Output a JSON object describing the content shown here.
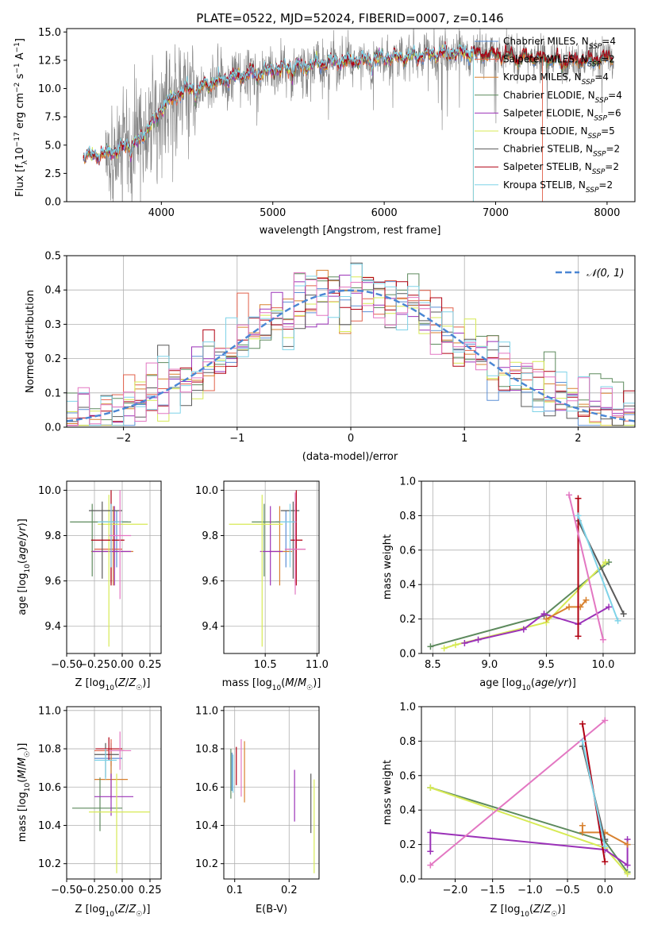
{
  "colors": {
    "data": "#808080",
    "chabrier_miles": "#5b8fd6",
    "salpeter_miles": "#e1604a",
    "kroupa_miles": "#d8812f",
    "chabrier_elodie": "#5d8a5d",
    "salpeter_elodie": "#9b32b8",
    "kroupa_elodie": "#d7ea55",
    "chabrier_stelib": "#5a5a5a",
    "salpeter_stelib": "#b00012",
    "kroupa_stelib": "#7fd3e8",
    "pink": "#e377c2",
    "gauss": "#4a86d4",
    "grid": "#b0b0b0"
  },
  "chart_data": [
    {
      "type": "line",
      "title": "PLATE=0522, MJD=52024, FIBERID=0007, z=0.146",
      "xlabel": "wavelength [Angstrom, rest frame]",
      "ylabel": "Flux [f_λ 10^-17 erg cm^-2 s^-1 A^-1]",
      "xlim": [
        3150,
        8250
      ],
      "ylim": [
        0,
        15.3
      ],
      "xticks": [
        "4000",
        "5000",
        "6000",
        "7000",
        "8000"
      ],
      "yticks": [
        "0.0",
        "2.5",
        "5.0",
        "7.5",
        "10.0",
        "12.5",
        "15.0"
      ],
      "grid": false,
      "legend_position": "top-right",
      "legend": [
        "Chabrier MILES, N_SSP=4",
        "Salpeter MILES, N_SSP=2",
        "Kroupa MILES, N_SSP=4",
        "Chabrier ELODIE, N_SSP=4",
        "Salpeter ELODIE, N_SSP=6",
        "Kroupa ELODIE, N_SSP=5",
        "Chabrier STELIB, N_SSP=2",
        "Salpeter STELIB, N_SSP=2",
        "Kroupa STELIB, N_SSP=2"
      ],
      "continuum": {
        "x": [
          3300,
          3500,
          3800,
          3950,
          4050,
          4200,
          4400,
          4600,
          4800,
          5000,
          5200,
          5400,
          5600,
          5800,
          6000,
          6200,
          6400,
          6600,
          6800,
          7000,
          7200,
          7400,
          7600,
          7800,
          8000
        ],
        "y": [
          4.0,
          4.2,
          5.3,
          7.6,
          8.9,
          9.8,
          10.3,
          10.9,
          11.3,
          11.6,
          11.9,
          12.2,
          12.4,
          12.5,
          12.7,
          12.8,
          13.0,
          13.2,
          13.1,
          13.0,
          12.8,
          12.7,
          12.4,
          12.5,
          12.7
        ]
      },
      "cutoffs": [
        {
          "series": "Salpeter ELODIE / Kroupa ELODIE / Kroupa STELIB",
          "x": 6800
        },
        {
          "series": "Salpeter MILES",
          "x": 7420
        }
      ]
    },
    {
      "type": "step",
      "xlabel": "(data-model)/error",
      "ylabel": "Normed distribution",
      "xlim": [
        -2.5,
        2.5
      ],
      "ylim": [
        0,
        0.5
      ],
      "xticks": [
        "−2",
        "−1",
        "0",
        "1",
        "2"
      ],
      "yticks": [
        "0.0",
        "0.1",
        "0.2",
        "0.3",
        "0.4",
        "0.5"
      ],
      "grid": true,
      "legend": [
        "𝒩(0, 1)"
      ],
      "legend_position": "top-right",
      "bin_width": 0.1,
      "bin_start": -2.5
    },
    {
      "type": "errorbar",
      "xlabel": "Z [log10(Z/Z☉)]",
      "ylabel": "age [log10(age/yr)]",
      "xlim": [
        -0.5,
        0.35
      ],
      "ylim": [
        9.28,
        10.04
      ],
      "xticks": [
        "−0.50",
        "−0.25",
        "0.00",
        "0.25"
      ],
      "yticks": [
        "9.4",
        "9.6",
        "9.8",
        "10.0"
      ],
      "grid": true,
      "points": [
        {
          "c": "chabrier_miles",
          "x": -0.05,
          "xe": [
            0.15,
            0.1
          ],
          "y": 9.86,
          "ye": [
            0.2,
            0.05
          ]
        },
        {
          "c": "salpeter_miles",
          "x": -0.1,
          "xe": [
            0.15,
            0.1
          ],
          "y": 9.74,
          "ye": [
            0.15,
            0.2
          ]
        },
        {
          "c": "kroupa_miles",
          "x": -0.08,
          "xe": [
            0.2,
            0.18
          ],
          "y": 9.73,
          "ye": [
            0.15,
            0.2
          ]
        },
        {
          "c": "chabrier_elodie",
          "x": -0.27,
          "xe": [
            0.2,
            0.35
          ],
          "y": 9.86,
          "ye": [
            0.24,
            0.08
          ]
        },
        {
          "c": "salpeter_elodie",
          "x": -0.07,
          "xe": [
            0.2,
            0.15
          ],
          "y": 9.73,
          "ye": [
            0.15,
            0.2
          ]
        },
        {
          "c": "kroupa_elodie",
          "x": -0.12,
          "xe": [
            0.1,
            0.35
          ],
          "y": 9.85,
          "ye": [
            0.54,
            0.13
          ]
        },
        {
          "c": "chabrier_stelib",
          "x": -0.18,
          "xe": [
            0.12,
            0.18
          ],
          "y": 9.91,
          "ye": [
            0.3,
            0.04
          ]
        },
        {
          "c": "salpeter_stelib",
          "x": -0.1,
          "xe": [
            0.18,
            0.12
          ],
          "y": 9.78,
          "ye": [
            0.2,
            0.22
          ]
        },
        {
          "c": "kroupa_stelib",
          "x": -0.1,
          "xe": [
            0.12,
            0.1
          ],
          "y": 9.86,
          "ye": [
            0.2,
            0.08
          ]
        },
        {
          "c": "pink",
          "x": -0.02,
          "xe": [
            0.1,
            0.1
          ],
          "y": 9.8,
          "ye": [
            0.28,
            0.2
          ]
        }
      ]
    },
    {
      "type": "errorbar",
      "xlabel": "mass [log10(M/M☉)]",
      "ylabel": "",
      "xlim": [
        10.1,
        11.02
      ],
      "ylim": [
        9.28,
        10.04
      ],
      "xticks": [
        "10.5",
        "11.0"
      ],
      "yticks": [
        "9.4",
        "9.6",
        "9.8",
        "10.0"
      ],
      "grid": true,
      "points": [
        {
          "c": "chabrier_miles",
          "x": 10.7,
          "xe": [
            0.1,
            0.08
          ],
          "y": 9.86,
          "ye": [
            0.2,
            0.05
          ]
        },
        {
          "c": "salpeter_miles",
          "x": 10.79,
          "xe": [
            0.1,
            0.1
          ],
          "y": 9.74,
          "ye": [
            0.15,
            0.2
          ]
        },
        {
          "c": "kroupa_miles",
          "x": 10.64,
          "xe": [
            0.1,
            0.12
          ],
          "y": 9.73,
          "ye": [
            0.15,
            0.2
          ]
        },
        {
          "c": "chabrier_elodie",
          "x": 10.49,
          "xe": [
            0.12,
            0.16
          ],
          "y": 9.86,
          "ye": [
            0.24,
            0.08
          ]
        },
        {
          "c": "salpeter_elodie",
          "x": 10.55,
          "xe": [
            0.1,
            0.12
          ],
          "y": 9.73,
          "ye": [
            0.15,
            0.2
          ]
        },
        {
          "c": "kroupa_elodie",
          "x": 10.47,
          "xe": [
            0.32,
            0.2
          ],
          "y": 9.85,
          "ye": [
            0.54,
            0.13
          ]
        },
        {
          "c": "chabrier_stelib",
          "x": 10.77,
          "xe": [
            0.12,
            0.06
          ],
          "y": 9.91,
          "ye": [
            0.3,
            0.04
          ]
        },
        {
          "c": "salpeter_stelib",
          "x": 10.8,
          "xe": [
            0.06,
            0.06
          ],
          "y": 9.78,
          "ye": [
            0.2,
            0.22
          ]
        },
        {
          "c": "kroupa_stelib",
          "x": 10.74,
          "xe": [
            0.1,
            0.06
          ],
          "y": 9.86,
          "ye": [
            0.2,
            0.08
          ]
        },
        {
          "c": "pink",
          "x": 10.79,
          "xe": [
            0.1,
            0.1
          ],
          "y": 9.74,
          "ye": [
            0.2,
            0.25
          ]
        }
      ]
    },
    {
      "type": "line",
      "xlabel": "age [log10(age/yr)]",
      "ylabel": "mass weight",
      "xlim": [
        8.4,
        10.28
      ],
      "ylim": [
        0,
        1.0
      ],
      "xticks": [
        "8.5",
        "9.0",
        "9.5",
        "10.0"
      ],
      "yticks": [
        "0.0",
        "0.2",
        "0.4",
        "0.6",
        "0.8",
        "1.0"
      ],
      "grid": true,
      "series": [
        {
          "c": "chabrier_elodie",
          "x": [
            8.48,
            9.48,
            10.05
          ],
          "y": [
            0.04,
            0.22,
            0.53
          ]
        },
        {
          "c": "kroupa_elodie",
          "x": [
            8.6,
            8.7,
            9.5,
            10.02
          ],
          "y": [
            0.03,
            0.05,
            0.18,
            0.53
          ]
        },
        {
          "c": "salpeter_elodie",
          "x": [
            8.78,
            8.9,
            9.3,
            9.48,
            9.78,
            10.05
          ],
          "y": [
            0.06,
            0.08,
            0.14,
            0.23,
            0.17,
            0.27
          ]
        },
        {
          "c": "kroupa_miles",
          "x": [
            9.5,
            9.7,
            9.8,
            9.85
          ],
          "y": [
            0.2,
            0.27,
            0.27,
            0.31
          ]
        },
        {
          "c": "chabrier_stelib",
          "x": [
            9.78,
            10.18
          ],
          "y": [
            0.77,
            0.23
          ]
        },
        {
          "c": "salpeter_stelib",
          "x": [
            9.78,
            9.78
          ],
          "y": [
            0.1,
            0.9
          ]
        },
        {
          "c": "pink",
          "x": [
            9.7,
            10.0
          ],
          "y": [
            0.92,
            0.08
          ]
        },
        {
          "c": "kroupa_stelib",
          "x": [
            9.78,
            10.13
          ],
          "y": [
            0.8,
            0.19
          ]
        }
      ]
    },
    {
      "type": "errorbar",
      "xlabel": "Z [log10(Z/Z☉)]",
      "ylabel": "mass [log10(M/M☉)]",
      "xlim": [
        -0.5,
        0.35
      ],
      "ylim": [
        10.12,
        11.02
      ],
      "xticks": [
        "−0.50",
        "−0.25",
        "0.00",
        "0.25"
      ],
      "yticks": [
        "10.2",
        "10.4",
        "10.6",
        "10.8",
        "11.0"
      ],
      "grid": true,
      "points": [
        {
          "c": "chabrier_miles",
          "x": -0.1,
          "xe": [
            0.15,
            0.1
          ],
          "y": 10.75,
          "ye": [
            0.1,
            0.08
          ]
        },
        {
          "c": "salpeter_miles",
          "x": -0.1,
          "xe": [
            0.15,
            0.12
          ],
          "y": 10.79,
          "ye": [
            0.08,
            0.06
          ]
        },
        {
          "c": "kroupa_miles",
          "x": -0.1,
          "xe": [
            0.15,
            0.15
          ],
          "y": 10.64,
          "ye": [
            0.1,
            0.12
          ]
        },
        {
          "c": "chabrier_elodie",
          "x": -0.2,
          "xe": [
            0.25,
            0.2
          ],
          "y": 10.49,
          "ye": [
            0.12,
            0.16
          ]
        },
        {
          "c": "salpeter_elodie",
          "x": -0.1,
          "xe": [
            0.15,
            0.2
          ],
          "y": 10.55,
          "ye": [
            0.1,
            0.12
          ]
        },
        {
          "c": "kroupa_elodie",
          "x": -0.05,
          "xe": [
            0.25,
            0.3
          ],
          "y": 10.47,
          "ye": [
            0.32,
            0.2
          ]
        },
        {
          "c": "chabrier_stelib",
          "x": -0.15,
          "xe": [
            0.1,
            0.12
          ],
          "y": 10.77,
          "ye": [
            0.12,
            0.06
          ]
        },
        {
          "c": "salpeter_stelib",
          "x": -0.12,
          "xe": [
            0.12,
            0.12
          ],
          "y": 10.8,
          "ye": [
            0.06,
            0.06
          ]
        },
        {
          "c": "kroupa_stelib",
          "x": -0.15,
          "xe": [
            0.1,
            0.1
          ],
          "y": 10.74,
          "ye": [
            0.1,
            0.06
          ]
        },
        {
          "c": "pink",
          "x": -0.02,
          "xe": [
            0.1,
            0.1
          ],
          "y": 10.79,
          "ye": [
            0.1,
            0.1
          ]
        }
      ]
    },
    {
      "type": "errorbar",
      "xlabel": "E(B-V)",
      "ylabel": "",
      "xlim": [
        0.08,
        0.255
      ],
      "ylim": [
        10.12,
        11.02
      ],
      "xticks": [
        "0.1",
        "0.2"
      ],
      "yticks": [
        "10.2",
        "10.4",
        "10.6",
        "10.8",
        "11.0"
      ],
      "grid": true,
      "points": [
        {
          "c": "chabrier_miles",
          "x": 0.095,
          "xe": [
            0,
            0
          ],
          "y": 10.7,
          "ye": [
            0.12,
            0.08
          ]
        },
        {
          "c": "kroupa_miles",
          "x": 0.118,
          "xe": [
            0,
            0
          ],
          "y": 10.64,
          "ye": [
            0.12,
            0.2
          ]
        },
        {
          "c": "chabrier_elodie",
          "x": 0.093,
          "xe": [
            0,
            0
          ],
          "y": 10.68,
          "ye": [
            0.14,
            0.12
          ]
        },
        {
          "c": "salpeter_elodie",
          "x": 0.21,
          "xe": [
            0,
            0
          ],
          "y": 10.55,
          "ye": [
            0.13,
            0.14
          ]
        },
        {
          "c": "kroupa_elodie",
          "x": 0.246,
          "xe": [
            0,
            0
          ],
          "y": 10.4,
          "ye": [
            0.25,
            0.24
          ]
        },
        {
          "c": "chabrier_stelib",
          "x": 0.24,
          "xe": [
            0,
            0
          ],
          "y": 10.52,
          "ye": [
            0.16,
            0.15
          ]
        },
        {
          "c": "salpeter_stelib",
          "x": 0.103,
          "xe": [
            0,
            0
          ],
          "y": 10.71,
          "ye": [
            0.1,
            0.1
          ]
        },
        {
          "c": "kroupa_stelib",
          "x": 0.097,
          "xe": [
            0,
            0
          ],
          "y": 10.67,
          "ye": [
            0.1,
            0.1
          ]
        },
        {
          "c": "pink",
          "x": 0.112,
          "xe": [
            0,
            0
          ],
          "y": 10.75,
          "ye": [
            0.2,
            0.1
          ]
        }
      ]
    },
    {
      "type": "line",
      "xlabel": "Z [log10(Z/Z☉)]",
      "ylabel": "mass weight",
      "xlim": [
        -2.45,
        0.4
      ],
      "ylim": [
        0,
        1.0
      ],
      "xticks": [
        "−2.0",
        "−1.5",
        "−1.0",
        "−0.5",
        "0.0"
      ],
      "yticks": [
        "0.0",
        "0.2",
        "0.4",
        "0.6",
        "0.8",
        "1.0"
      ],
      "grid": true,
      "series": [
        {
          "c": "chabrier_elodie",
          "x": [
            -2.33,
            0.0,
            0.3
          ],
          "y": [
            0.53,
            0.22,
            0.04
          ]
        },
        {
          "c": "kroupa_elodie",
          "x": [
            -2.33,
            0.0,
            0.3
          ],
          "y": [
            0.53,
            0.18,
            0.03
          ]
        },
        {
          "c": "salpeter_elodie",
          "x": [
            -2.33,
            -2.33,
            0.0,
            0.3,
            0.3
          ],
          "y": [
            0.16,
            0.27,
            0.17,
            0.08,
            0.23
          ]
        },
        {
          "c": "pink",
          "x": [
            -2.33,
            0.0
          ],
          "y": [
            0.08,
            0.92
          ]
        },
        {
          "c": "kroupa_miles",
          "x": [
            -0.3,
            -0.3,
            0.0,
            0.3
          ],
          "y": [
            0.31,
            0.27,
            0.27,
            0.2
          ]
        },
        {
          "c": "salpeter_stelib",
          "x": [
            -0.3,
            0.0
          ],
          "y": [
            0.9,
            0.1
          ]
        },
        {
          "c": "chabrier_stelib",
          "x": [
            -0.3,
            0.0
          ],
          "y": [
            0.77,
            0.23
          ]
        },
        {
          "c": "kroupa_stelib",
          "x": [
            -0.3,
            0.0
          ],
          "y": [
            0.8,
            0.19
          ]
        }
      ]
    }
  ]
}
